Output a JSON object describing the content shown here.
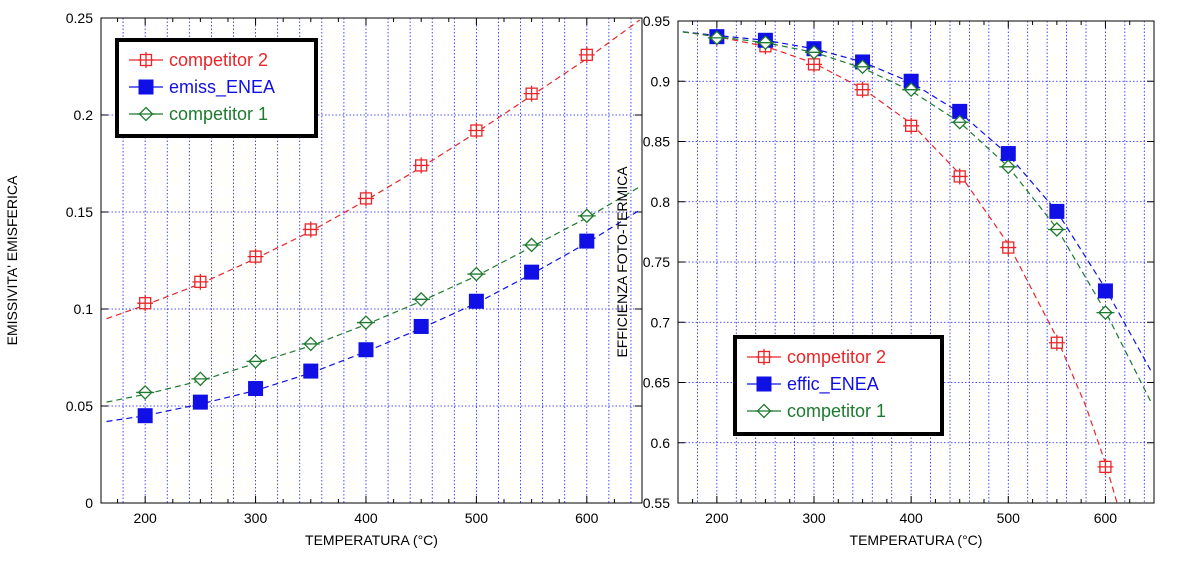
{
  "chart_data": [
    {
      "type": "line",
      "xlabel": "TEMPERATURA  (°C)",
      "ylabel": "EMISSIVITA' EMISFERICA",
      "xlim": [
        160,
        650
      ],
      "ylim": [
        0,
        0.25
      ],
      "xticks": [
        200,
        300,
        400,
        500,
        600
      ],
      "xtick_labels": [
        "200",
        "300",
        "400",
        "500",
        "600"
      ],
      "yticks": [
        0,
        0.05,
        0.1,
        0.15,
        0.2,
        0.25
      ],
      "ytick_labels": [
        "0",
        "0.05",
        "0.1",
        "0.15",
        "0.2",
        "0.25"
      ],
      "grid": true,
      "legend_position": "top-left",
      "series": [
        {
          "name": "competitor 2",
          "color": "#e8262a",
          "marker": "square-cross",
          "x": [
            200,
            250,
            300,
            350,
            400,
            450,
            500,
            550,
            600
          ],
          "values": [
            0.103,
            0.114,
            0.127,
            0.141,
            0.157,
            0.174,
            0.192,
            0.211,
            0.231
          ],
          "fit": [
            [
              165,
              0.095
            ],
            [
              200,
              0.102
            ],
            [
              250,
              0.113
            ],
            [
              300,
              0.126
            ],
            [
              350,
              0.14
            ],
            [
              400,
              0.156
            ],
            [
              450,
              0.173
            ],
            [
              500,
              0.191
            ],
            [
              550,
              0.21
            ],
            [
              600,
              0.229
            ],
            [
              648,
              0.249
            ]
          ]
        },
        {
          "name": "emiss_ENEA",
          "color": "#1010e6",
          "marker": "filled-square",
          "x": [
            200,
            250,
            300,
            350,
            400,
            450,
            500,
            550,
            600
          ],
          "values": [
            0.045,
            0.052,
            0.059,
            0.068,
            0.079,
            0.091,
            0.104,
            0.119,
            0.135
          ],
          "fit": [
            [
              165,
              0.042
            ],
            [
              200,
              0.045
            ],
            [
              250,
              0.051
            ],
            [
              300,
              0.058
            ],
            [
              350,
              0.067
            ],
            [
              400,
              0.078
            ],
            [
              450,
              0.09
            ],
            [
              500,
              0.103
            ],
            [
              550,
              0.118
            ],
            [
              600,
              0.134
            ],
            [
              648,
              0.151
            ]
          ]
        },
        {
          "name": "competitor 1",
          "color": "#1e7a2e",
          "marker": "diamond-cross",
          "x": [
            200,
            250,
            300,
            350,
            400,
            450,
            500,
            550,
            600
          ],
          "values": [
            0.057,
            0.064,
            0.073,
            0.082,
            0.093,
            0.105,
            0.118,
            0.133,
            0.148
          ],
          "fit": [
            [
              165,
              0.052
            ],
            [
              200,
              0.056
            ],
            [
              250,
              0.063
            ],
            [
              300,
              0.072
            ],
            [
              350,
              0.081
            ],
            [
              400,
              0.092
            ],
            [
              450,
              0.104
            ],
            [
              500,
              0.117
            ],
            [
              550,
              0.132
            ],
            [
              600,
              0.147
            ],
            [
              648,
              0.163
            ]
          ]
        }
      ]
    },
    {
      "type": "line",
      "xlabel": "TEMPERATURA  (°C)",
      "ylabel": "EFFICIENZA FOTO-TERMICA",
      "xlim": [
        160,
        650
      ],
      "ylim": [
        0.55,
        0.95
      ],
      "xticks": [
        200,
        300,
        400,
        500,
        600
      ],
      "xtick_labels": [
        "200",
        "300",
        "400",
        "500",
        "600"
      ],
      "yticks": [
        0.55,
        0.6,
        0.65,
        0.7,
        0.75,
        0.8,
        0.85,
        0.9,
        0.95
      ],
      "ytick_labels": [
        "0.55",
        "0.6",
        "0.65",
        "0.7",
        "0.75",
        "0.8",
        "0.85",
        "0.9",
        "0.95"
      ],
      "grid": true,
      "legend_position": "bottom-left",
      "series": [
        {
          "name": "competitor 2",
          "color": "#e8262a",
          "marker": "square-cross",
          "x": [
            200,
            250,
            300,
            350,
            400,
            450,
            500,
            550,
            600
          ],
          "values": [
            0.936,
            0.929,
            0.914,
            0.893,
            0.863,
            0.821,
            0.762,
            0.683,
            0.58
          ],
          "fit": [
            [
              165,
              0.941
            ],
            [
              200,
              0.937
            ],
            [
              250,
              0.929
            ],
            [
              300,
              0.915
            ],
            [
              350,
              0.894
            ],
            [
              400,
              0.865
            ],
            [
              450,
              0.823
            ],
            [
              500,
              0.765
            ],
            [
              550,
              0.687
            ],
            [
              580,
              0.63
            ],
            [
              600,
              0.583
            ],
            [
              612,
              0.55
            ]
          ]
        },
        {
          "name": "effic_ENEA",
          "color": "#1010e6",
          "marker": "filled-square",
          "x": [
            200,
            250,
            300,
            350,
            400,
            450,
            500,
            550,
            600
          ],
          "values": [
            0.937,
            0.934,
            0.927,
            0.916,
            0.9,
            0.875,
            0.84,
            0.792,
            0.726
          ],
          "fit": [
            [
              165,
              0.941
            ],
            [
              200,
              0.938
            ],
            [
              250,
              0.934
            ],
            [
              300,
              0.927
            ],
            [
              350,
              0.916
            ],
            [
              400,
              0.899
            ],
            [
              450,
              0.874
            ],
            [
              500,
              0.839
            ],
            [
              550,
              0.792
            ],
            [
              600,
              0.728
            ],
            [
              648,
              0.658
            ]
          ]
        },
        {
          "name": "competitor 1",
          "color": "#1e7a2e",
          "marker": "diamond-cross",
          "x": [
            200,
            250,
            300,
            350,
            400,
            450,
            500,
            550,
            600
          ],
          "values": [
            0.936,
            0.932,
            0.924,
            0.912,
            0.893,
            0.866,
            0.829,
            0.777,
            0.708
          ],
          "fit": [
            [
              165,
              0.941
            ],
            [
              200,
              0.937
            ],
            [
              250,
              0.932
            ],
            [
              300,
              0.924
            ],
            [
              350,
              0.911
            ],
            [
              400,
              0.892
            ],
            [
              450,
              0.866
            ],
            [
              500,
              0.829
            ],
            [
              550,
              0.778
            ],
            [
              600,
              0.709
            ],
            [
              648,
              0.632
            ]
          ]
        }
      ]
    }
  ]
}
